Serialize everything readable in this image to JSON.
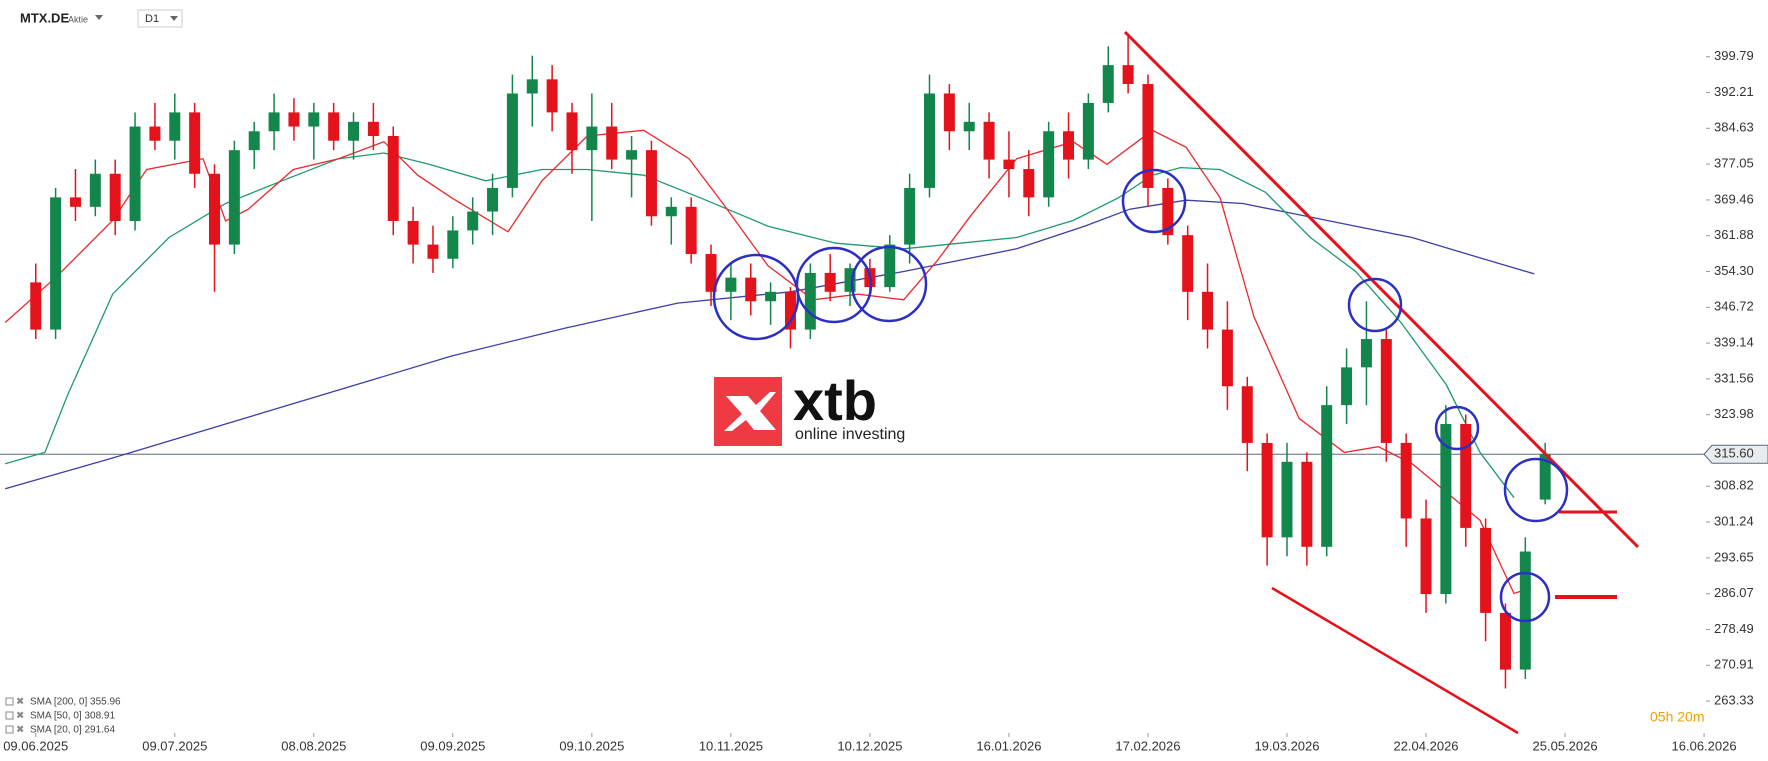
{
  "chart_data": {
    "type": "candlestick",
    "title": "MTX.DE",
    "subtitle": "Aktie",
    "timeframe": "D1",
    "countdown": "05h 20m",
    "watermark": {
      "brand": "xtb",
      "tagline": "online investing"
    },
    "up_color": "#13874b",
    "down_color": "#e3121b",
    "xlim": [
      -1.8,
      84.5
    ],
    "ylim": [
      257.2,
      411.8
    ],
    "xticks": [
      {
        "value": 0,
        "label": "09.06.2025"
      },
      {
        "value": 7,
        "label": "09.07.2025"
      },
      {
        "value": 14,
        "label": "08.08.2025"
      },
      {
        "value": 21,
        "label": "09.09.2025"
      },
      {
        "value": 28,
        "label": "09.10.2025"
      },
      {
        "value": 35,
        "label": "10.11.2025"
      },
      {
        "value": 42,
        "label": "10.12.2025"
      },
      {
        "value": 49,
        "label": "16.01.2026"
      },
      {
        "value": 56,
        "label": "17.02.2026"
      },
      {
        "value": 63,
        "label": "19.03.2026"
      },
      {
        "value": 70,
        "label": "22.04.2026"
      },
      {
        "value": 77,
        "label": "25.05.2026"
      },
      {
        "value": 84,
        "label": "16.06.2026"
      }
    ],
    "yticks": [
      399.79,
      392.21,
      384.63,
      377.05,
      369.46,
      361.88,
      {
        "value": 354.3,
        "label": "354.30"
      },
      346.72,
      339.14,
      331.56,
      323.98,
      308.82,
      301.24,
      293.65,
      286.07,
      278.49,
      270.91,
      263.33
    ],
    "current_price": {
      "value": 315.6,
      "label": "315.60"
    },
    "x": [
      0,
      1,
      2,
      3,
      4,
      5,
      6,
      7,
      8,
      9,
      10,
      11,
      12,
      13,
      14,
      15,
      16,
      17,
      18,
      19,
      20,
      21,
      22,
      23,
      24,
      25,
      26,
      27,
      28,
      29,
      30,
      31,
      32,
      33,
      34,
      35,
      36,
      37,
      38,
      39,
      40,
      41,
      42,
      43,
      44,
      45,
      46,
      47,
      48,
      49,
      50,
      51,
      52,
      53,
      54,
      55,
      56,
      57,
      58,
      59,
      60,
      61,
      62,
      63,
      64,
      65,
      66,
      67,
      68,
      69,
      70,
      71,
      72,
      73,
      74,
      75,
      76
    ],
    "open": [
      352,
      342,
      370,
      368,
      375,
      365,
      385,
      382,
      388,
      375,
      360,
      380,
      384,
      388,
      385,
      388,
      382,
      386,
      383,
      365,
      360,
      357,
      363,
      367,
      372,
      392,
      395,
      388,
      380,
      385,
      378,
      380,
      366,
      368,
      358,
      350,
      353,
      348,
      350,
      342,
      354,
      350,
      355,
      351,
      360,
      372,
      392,
      384,
      386,
      378,
      376,
      370,
      384,
      378,
      390,
      398,
      394,
      372,
      362,
      350,
      342,
      330,
      318,
      298,
      314,
      296,
      326,
      334,
      340,
      318,
      302,
      286,
      322,
      300,
      282,
      270,
      306
    ],
    "high": [
      356,
      372,
      376,
      378,
      378,
      388,
      390,
      392,
      390,
      377,
      382,
      386,
      392,
      391,
      390,
      390,
      388,
      390,
      385,
      368,
      364,
      366,
      370,
      375,
      396,
      400,
      398,
      390,
      392,
      390,
      383,
      382,
      370,
      370,
      360,
      356,
      356,
      352,
      351,
      356,
      358,
      356,
      357,
      362,
      375,
      396,
      394,
      390,
      388,
      384,
      380,
      386,
      388,
      392,
      402,
      404,
      396,
      374,
      364,
      356,
      348,
      332,
      320,
      318,
      316,
      330,
      338,
      348,
      342,
      320,
      306,
      326,
      324,
      302,
      284,
      298,
      318
    ],
    "low": [
      340,
      340,
      365,
      366,
      362,
      363,
      380,
      378,
      372,
      350,
      358,
      376,
      380,
      382,
      378,
      380,
      378,
      380,
      362,
      356,
      354,
      355,
      360,
      362,
      370,
      385,
      384,
      375,
      365,
      376,
      370,
      364,
      360,
      356,
      347,
      344,
      345,
      343,
      338,
      340,
      348,
      347,
      349,
      350,
      356,
      370,
      380,
      380,
      374,
      370,
      366,
      368,
      374,
      376,
      388,
      392,
      368,
      360,
      344,
      338,
      325,
      312,
      292,
      294,
      292,
      294,
      322,
      326,
      314,
      296,
      282,
      284,
      296,
      276,
      266,
      268,
      305
    ],
    "close": [
      342,
      370,
      368,
      375,
      365,
      385,
      382,
      388,
      375,
      360,
      380,
      384,
      388,
      385,
      388,
      382,
      386,
      383,
      365,
      360,
      357,
      363,
      367,
      372,
      392,
      395,
      388,
      380,
      385,
      378,
      380,
      366,
      368,
      358,
      350,
      353,
      348,
      350,
      342,
      354,
      350,
      355,
      351,
      360,
      372,
      392,
      384,
      386,
      378,
      376,
      370,
      384,
      378,
      390,
      398,
      394,
      372,
      362,
      350,
      342,
      330,
      318,
      298,
      314,
      296,
      326,
      334,
      340,
      318,
      302,
      286,
      322,
      300,
      282,
      270,
      295,
      315.6
    ],
    "indicators": [
      {
        "name": "SMA [200, 0] 355.96",
        "color": "#3b3fa8",
        "x": [
          -1.54,
          3.87,
          9.56,
          15.25,
          20.94,
          26.63,
          32.32,
          38.01,
          43.7,
          49.39,
          52.8,
          55.08,
          57.92,
          60.77,
          63.61,
          66.46,
          69.3,
          72.15,
          75.45
        ],
        "values": [
          308.3,
          314.8,
          322.0,
          329.2,
          336.4,
          342.3,
          347.6,
          350.0,
          354.3,
          359.1,
          363.9,
          367.5,
          369.4,
          368.7,
          366.3,
          363.9,
          361.5,
          357.9,
          353.8
        ]
      },
      {
        "name": "SMA [50, 0] 308.91",
        "color": "#1f9a6a",
        "x": [
          -1.54,
          0.46,
          1.59,
          3.87,
          6.71,
          9.56,
          12.4,
          15.25,
          17.53,
          19.8,
          22.65,
          25.49,
          27.77,
          30.61,
          33.46,
          36.87,
          40.29,
          43.7,
          46.54,
          49.39,
          52.23,
          54.51,
          56.22,
          57.64,
          59.63,
          61.91,
          64.18,
          66.46,
          68.74,
          71.01,
          72.72,
          74.43
        ],
        "values": [
          313.6,
          316.0,
          328.0,
          349.5,
          361.5,
          368.7,
          373.5,
          378.2,
          379.4,
          377.0,
          373.5,
          375.9,
          375.9,
          374.7,
          369.9,
          363.9,
          360.3,
          359.1,
          360.3,
          361.5,
          365.1,
          369.9,
          374.7,
          376.3,
          375.9,
          371.1,
          361.5,
          354.3,
          343.5,
          330.4,
          316.0,
          306.4
        ]
      },
      {
        "name": "SMA [20, 0] 291.64",
        "color": "#e8292e",
        "x": [
          -1.54,
          1.02,
          3.87,
          5.58,
          8.42,
          9.56,
          10.7,
          12.97,
          15.25,
          17.53,
          19.23,
          20.94,
          23.78,
          25.49,
          27.77,
          30.61,
          32.89,
          34.6,
          36.87,
          39.15,
          41.42,
          43.7,
          45.41,
          47.11,
          49.39,
          52.23,
          53.94,
          56.22,
          57.92,
          59.63,
          61.34,
          63.61,
          65.89,
          67.6,
          69.3,
          71.01,
          72.72,
          74.43,
          75.28
        ],
        "values": [
          343.5,
          353.1,
          365.1,
          375.9,
          378.2,
          365.0,
          367.5,
          375.9,
          378.2,
          381.8,
          374.7,
          369.9,
          362.7,
          373.5,
          383.0,
          384.2,
          378.2,
          368.7,
          355.5,
          348.3,
          349.5,
          348.3,
          356.7,
          366.3,
          378.2,
          381.8,
          377.0,
          384.2,
          380.6,
          369.9,
          344.7,
          323.2,
          316.0,
          317.2,
          313.6,
          307.6,
          301.6,
          286.1,
          287.3
        ]
      }
    ]
  }
}
